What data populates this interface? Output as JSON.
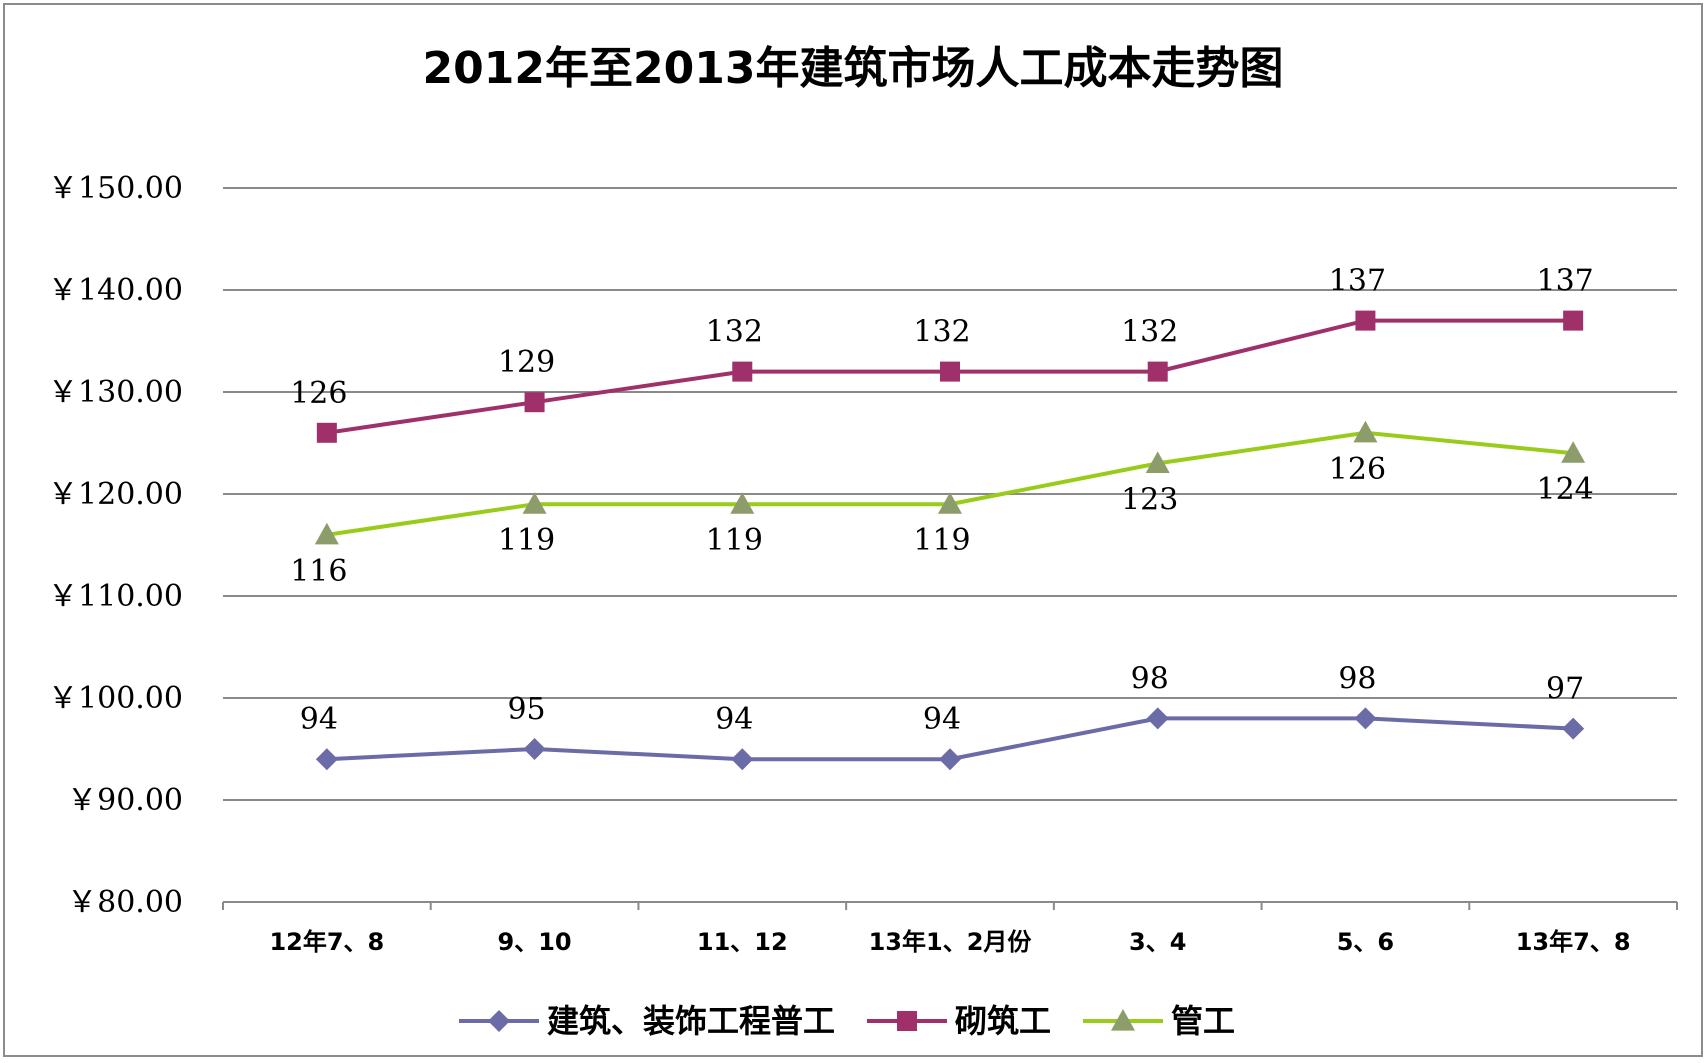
{
  "chart_data": {
    "type": "line",
    "title": "2012年至2013年建筑市场人工成本走势图",
    "xlabel": "",
    "ylabel": "",
    "categories": [
      "12年7、8",
      "9、10",
      "11、12",
      "13年1、2月份",
      "3、4",
      "5、6",
      "13年7、8"
    ],
    "ylim": [
      80,
      150
    ],
    "yticks": [
      150,
      140,
      130,
      120,
      110,
      100,
      90,
      80
    ],
    "ytick_labels": [
      "￥150.00",
      "￥140.00",
      "￥130.00",
      "￥120.00",
      "￥110.00",
      "￥100.00",
      "￥90.00",
      "￥80.00"
    ],
    "grid": true,
    "legend_position": "bottom",
    "series": [
      {
        "name": "建筑、装饰工程普工",
        "values": [
          94,
          95,
          94,
          94,
          98,
          98,
          97
        ],
        "color": "#6B6BA8",
        "marker": "diamond",
        "label_position": "above"
      },
      {
        "name": "砌筑工",
        "values": [
          126,
          129,
          132,
          132,
          132,
          137,
          137
        ],
        "color": "#A0306A",
        "marker": "square",
        "label_position": "above"
      },
      {
        "name": "管工",
        "values": [
          116,
          119,
          119,
          119,
          123,
          126,
          124
        ],
        "color": "#99CC1A",
        "marker": "triangle",
        "marker_color": "#8C9C6A",
        "label_position": "below"
      }
    ]
  }
}
